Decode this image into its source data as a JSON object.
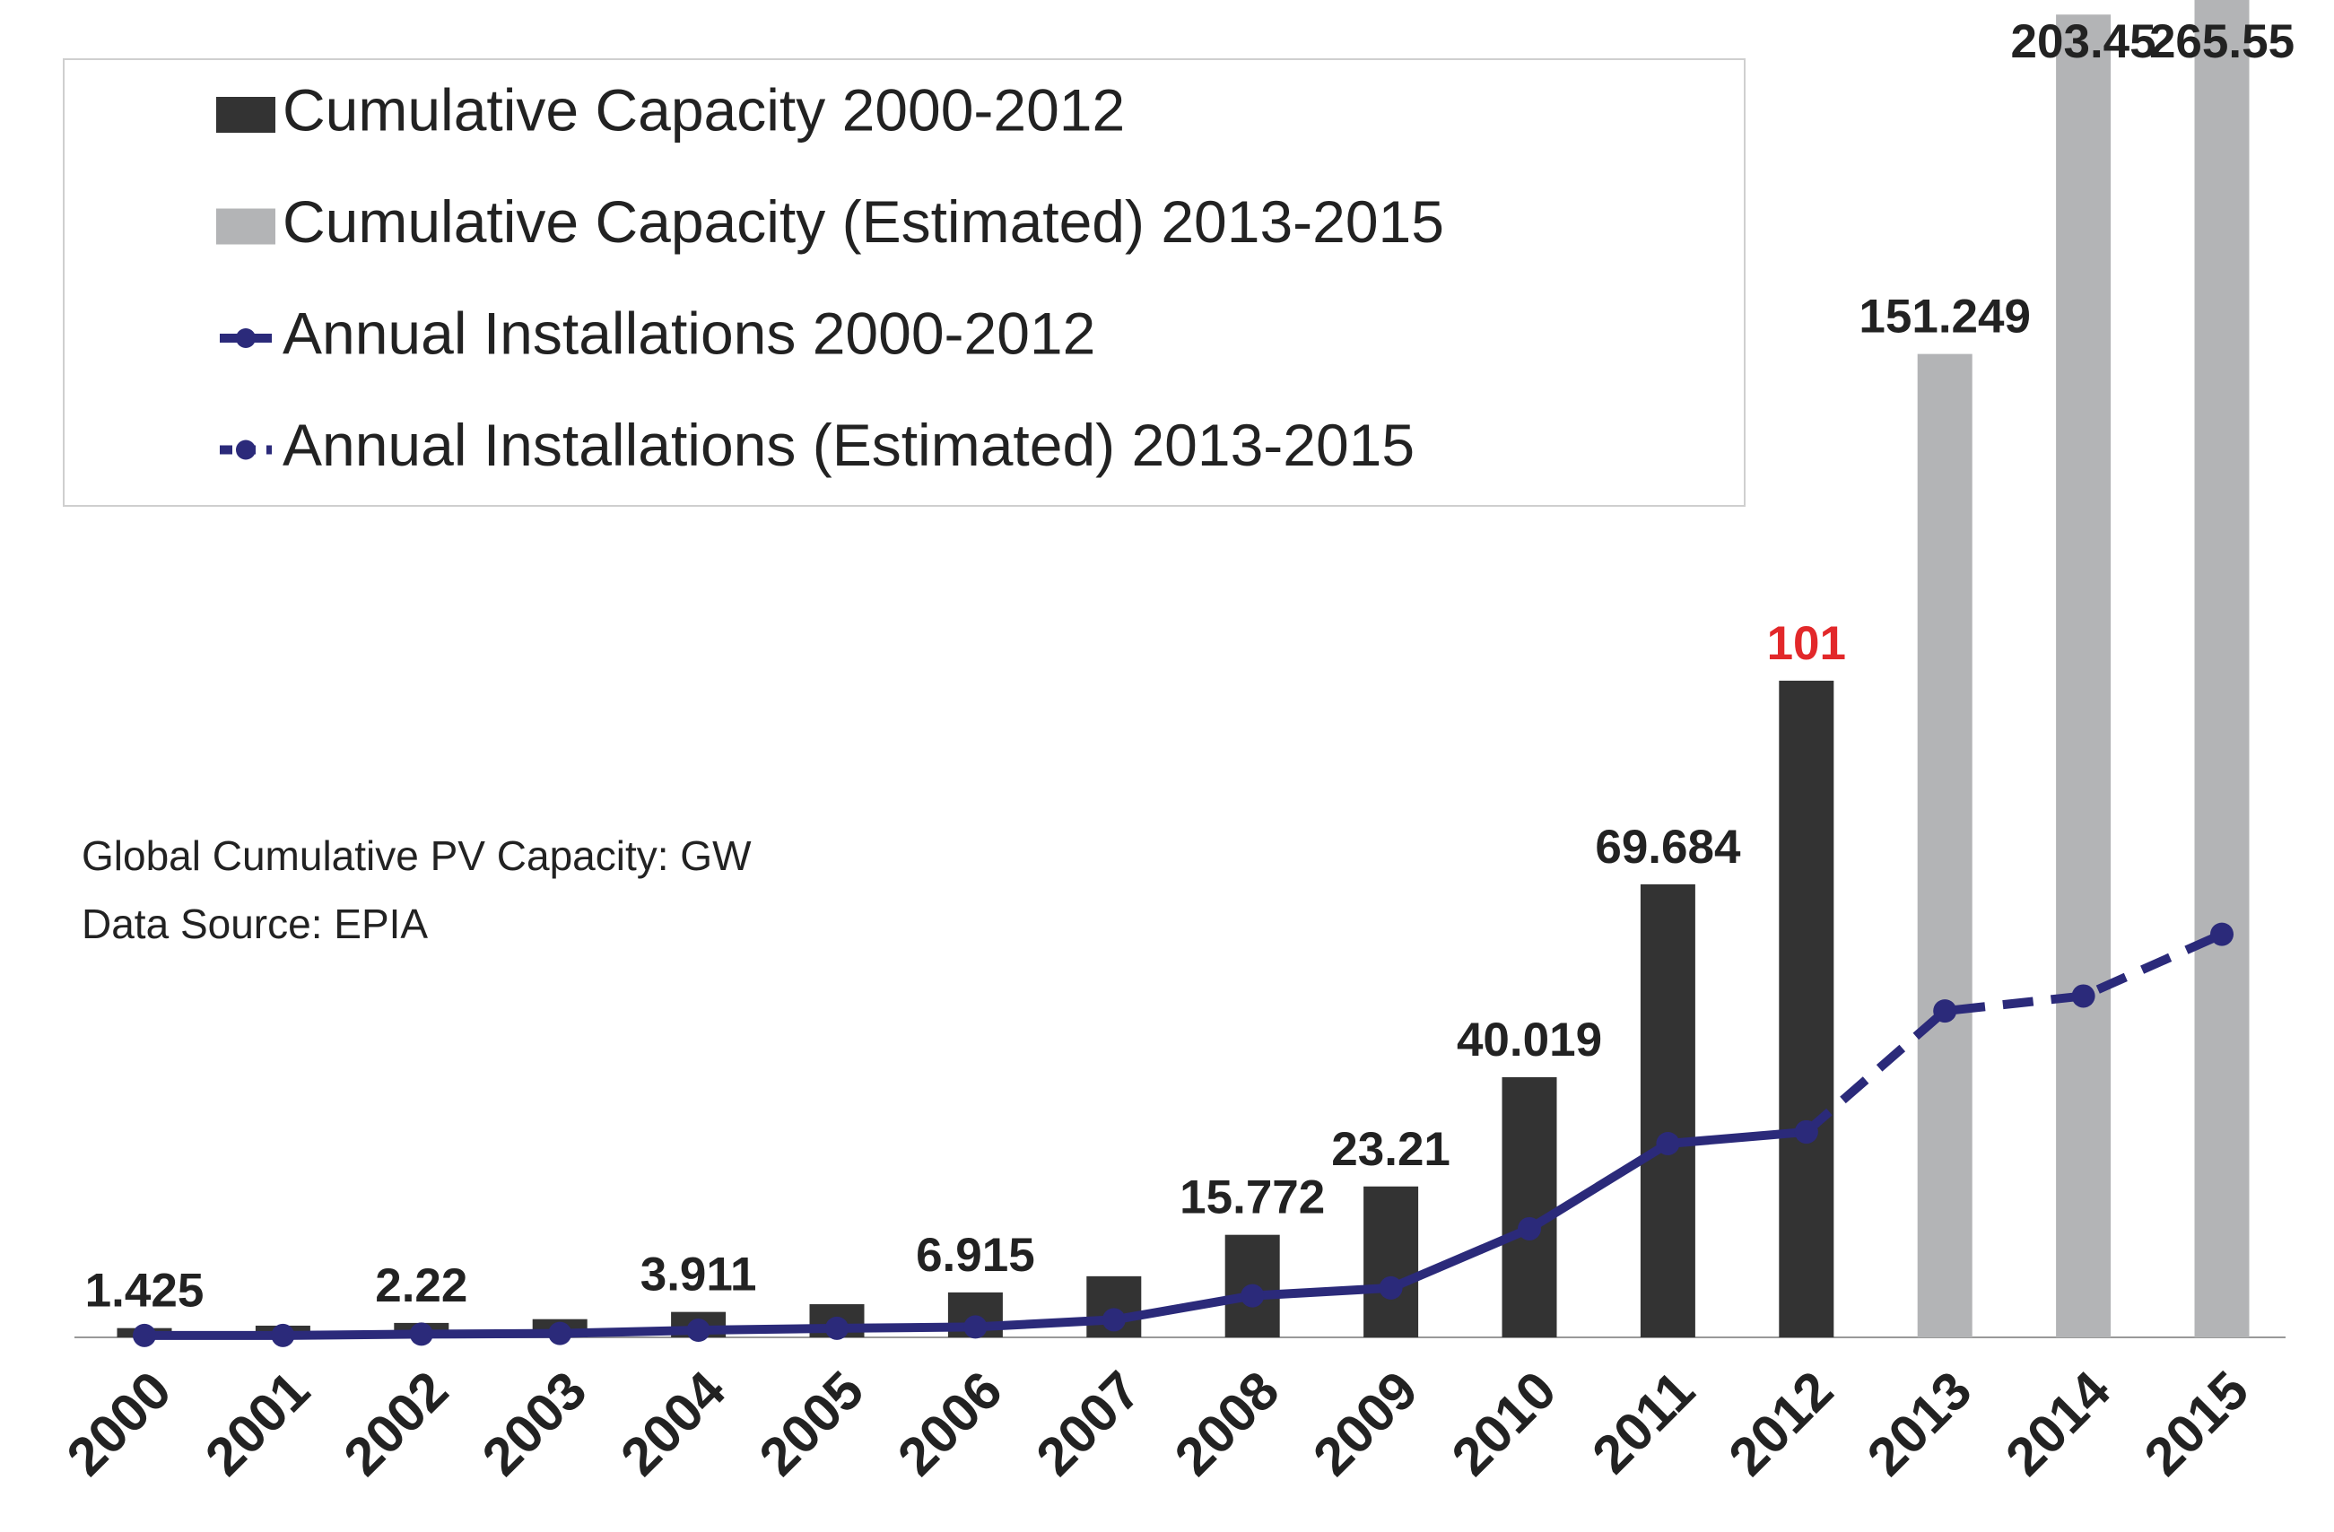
{
  "chart_data": {
    "type": "combo",
    "annotations": [
      "Global Cumulative PV Capacity: GW",
      "Data Source: EPIA"
    ],
    "categories": [
      "2000",
      "2001",
      "2002",
      "2003",
      "2004",
      "2005",
      "2006",
      "2007",
      "2008",
      "2009",
      "2010",
      "2011",
      "2012",
      "2013",
      "2014",
      "2015"
    ],
    "ylim": [
      0,
      205
    ],
    "series": [
      {
        "name": "Cumulative Capacity 2000-2012",
        "kind": "bar",
        "color": "#333333",
        "values": [
          1.425,
          1.8,
          2.22,
          2.8,
          3.911,
          5.1,
          6.915,
          9.4,
          15.772,
          23.21,
          40.019,
          69.684,
          101,
          null,
          null,
          null
        ],
        "value_labels": [
          "1.425",
          null,
          "2.22",
          null,
          "3.911",
          null,
          "6.915",
          null,
          "15.772",
          "23.21",
          "40.019",
          "69.684",
          "101",
          null,
          null,
          null
        ],
        "value_label_colors": [
          "#222222",
          "#222222",
          "#222222",
          "#222222",
          "#222222",
          "#222222",
          "#222222",
          "#222222",
          "#222222",
          "#222222",
          "#222222",
          "#222222",
          "#e2282a",
          "#222222",
          "#222222",
          "#222222"
        ]
      },
      {
        "name": "Cumulative Capacity (Estimated) 2013-2015",
        "kind": "bar",
        "color": "#b3b4b6",
        "values": [
          null,
          null,
          null,
          null,
          null,
          null,
          null,
          null,
          null,
          null,
          null,
          null,
          null,
          151.249,
          203.45,
          265.55
        ],
        "value_labels": [
          null,
          null,
          null,
          null,
          null,
          null,
          null,
          null,
          null,
          null,
          null,
          null,
          null,
          "151.249",
          "203.45",
          "265.55"
        ],
        "value_label_colors": [
          "#222222",
          "#222222",
          "#222222",
          "#222222",
          "#222222",
          "#222222",
          "#222222",
          "#222222",
          "#222222",
          "#222222",
          "#222222",
          "#222222",
          "#222222",
          "#222222",
          "#222222",
          "#222222"
        ]
      },
      {
        "name": "Annual Installations 2000-2012",
        "kind": "line",
        "dashed": false,
        "color": "#2b2a7a",
        "values": [
          0.3,
          0.3,
          0.5,
          0.6,
          1.1,
          1.4,
          1.6,
          2.7,
          6.4,
          7.6,
          16.7,
          29.8,
          31.6,
          null,
          null,
          null
        ]
      },
      {
        "name": "Annual Installations (Estimated) 2013-2015",
        "kind": "line",
        "dashed": true,
        "color": "#2b2a7a",
        "values": [
          null,
          null,
          null,
          null,
          null,
          null,
          null,
          null,
          null,
          null,
          null,
          null,
          31.6,
          50.2,
          52.5,
          62
        ]
      }
    ]
  }
}
